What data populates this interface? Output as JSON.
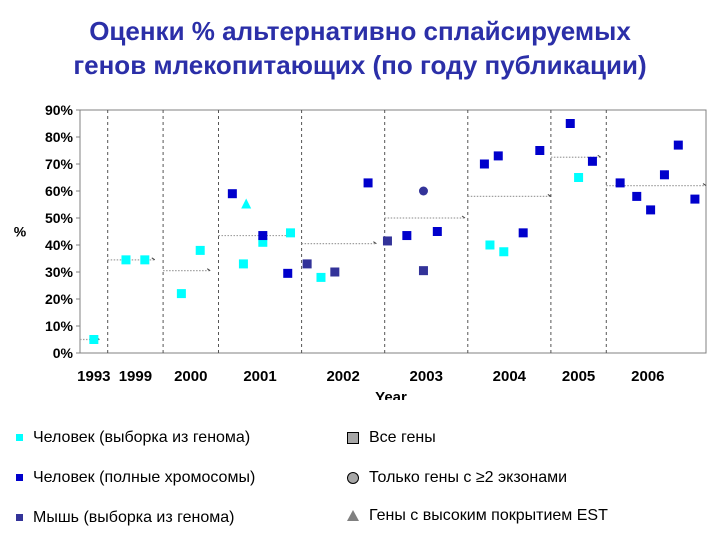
{
  "title": {
    "line1": "Оценки % альтернативно сплайсируемых",
    "line2": "генов млекопитающих (по году публикации)"
  },
  "legend": {
    "human_genome_sample": "Человек (выборка из генома)",
    "human_full_chromosomes": "Человек (полные хромосомы)",
    "mouse_genome_sample": "Мышь (выборка из генома)",
    "all_genes": "Все гены",
    "genes_2_exons": "Только гены с ≥2 экзонами",
    "high_est_coverage": "Гены с высоким покрытием EST"
  },
  "colors": {
    "title": "#2b2fa8",
    "human_genome_sample": "#00ffff",
    "human_full_chromosomes": "#0000cc",
    "mouse_genome_sample": "#333399",
    "legend_gray": "#a6a6a6",
    "trend": "#a0a0a0"
  },
  "chart_data": {
    "type": "scatter",
    "xlabel": "Year",
    "ylabel": "%",
    "ylim": [
      0,
      90
    ],
    "yticks": [
      "0%",
      "10%",
      "20%",
      "30%",
      "40%",
      "50%",
      "60%",
      "70%",
      "80%",
      "90%"
    ],
    "grid": "vertical dashed lines between years",
    "categories": [
      "1993",
      "1999",
      "2000",
      "2001",
      "2002",
      "2003",
      "2004",
      "2005",
      "2006"
    ],
    "year_spans": [
      {
        "year": "1993",
        "start": 0.0,
        "end": 0.5
      },
      {
        "year": "1999",
        "start": 0.5,
        "end": 1.5
      },
      {
        "year": "2000",
        "start": 1.5,
        "end": 2.5
      },
      {
        "year": "2001",
        "start": 2.5,
        "end": 4.0
      },
      {
        "year": "2002",
        "start": 4.0,
        "end": 5.5
      },
      {
        "year": "2003",
        "start": 5.5,
        "end": 7.0
      },
      {
        "year": "2004",
        "start": 7.0,
        "end": 8.5
      },
      {
        "year": "2005",
        "start": 8.5,
        "end": 9.5
      },
      {
        "year": "2006",
        "start": 9.5,
        "end": 11.0
      }
    ],
    "xlim": [
      0,
      11.0
    ],
    "series": [
      {
        "name": "Человек (выборка из генома)",
        "marker": "square",
        "color": "#00ffff",
        "points": [
          [
            0.25,
            5
          ],
          [
            0.83,
            34.5
          ],
          [
            1.17,
            34.5
          ],
          [
            1.83,
            22
          ],
          [
            2.17,
            38
          ],
          [
            2.95,
            33
          ],
          [
            3.3,
            41
          ],
          [
            3.8,
            44.5
          ],
          [
            4.35,
            28
          ],
          [
            7.4,
            40
          ],
          [
            7.65,
            37.5
          ],
          [
            9.0,
            65
          ]
        ]
      },
      {
        "name": "Человек (полные хромосомы)",
        "marker": "square",
        "color": "#0000cc",
        "points": [
          [
            2.75,
            59
          ],
          [
            3.3,
            43.5
          ],
          [
            3.75,
            29.5
          ],
          [
            5.2,
            63
          ],
          [
            5.9,
            43.5
          ],
          [
            6.45,
            45
          ],
          [
            7.3,
            70
          ],
          [
            7.55,
            73
          ],
          [
            8.0,
            44.5
          ],
          [
            8.3,
            75
          ],
          [
            8.85,
            85
          ],
          [
            9.25,
            71
          ],
          [
            9.75,
            63
          ],
          [
            10.05,
            58
          ],
          [
            10.3,
            53
          ],
          [
            10.55,
            66
          ],
          [
            10.8,
            77
          ],
          [
            11.1,
            57
          ]
        ]
      },
      {
        "name": "Мышь (выборка из генома)",
        "marker": "square",
        "color": "#333399",
        "points": [
          [
            4.1,
            33
          ],
          [
            4.6,
            30
          ],
          [
            5.55,
            41.5
          ],
          [
            6.2,
            30.5
          ]
        ]
      },
      {
        "name": "Только гены с ≥2 экзонами",
        "marker": "circle",
        "points": [
          [
            6.2,
            60
          ]
        ]
      },
      {
        "name": "Гены с высоким покрытием EST",
        "marker": "triangle",
        "color": "#00ffff",
        "points": [
          [
            3.0,
            55
          ]
        ]
      }
    ],
    "trend_segments": [
      {
        "x": [
          0,
          0.35
        ],
        "y": 5
      },
      {
        "x": [
          0.5,
          1.35
        ],
        "y": 34.5
      },
      {
        "x": [
          1.5,
          2.35
        ],
        "y": 30.5
      },
      {
        "x": [
          2.5,
          3.85
        ],
        "y": 43.5
      },
      {
        "x": [
          4.0,
          5.35
        ],
        "y": 40.5
      },
      {
        "x": [
          5.5,
          6.95
        ],
        "y": 50
      },
      {
        "x": [
          7.0,
          8.5
        ],
        "y": 58
      },
      {
        "x": [
          8.5,
          9.4
        ],
        "y": 72.5
      },
      {
        "x": [
          9.5,
          11.3
        ],
        "y": 62
      }
    ]
  }
}
